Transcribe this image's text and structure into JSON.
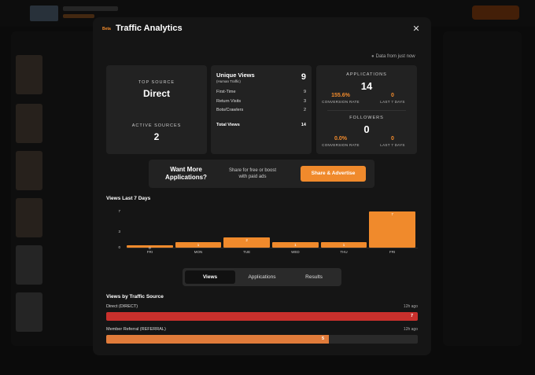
{
  "modal": {
    "beta": "Beta",
    "title": "Traffic Analytics",
    "close": "✕",
    "freshness": "Data from just now"
  },
  "top_source": {
    "label": "TOP SOURCE",
    "value": "Direct"
  },
  "active_sources": {
    "label": "ACTIVE SOURCES",
    "value": "2"
  },
  "unique_views": {
    "title": "Unique Views",
    "subtitle": "(Human Traffic)",
    "total": "9",
    "rows": [
      {
        "label": "First-Time",
        "value": "9"
      },
      {
        "label": "Return Visits",
        "value": "3"
      },
      {
        "label": "Bots/Crawlers",
        "value": "2"
      }
    ],
    "total_label": "Total Views",
    "total_value": "14"
  },
  "applications": {
    "label": "APPLICATIONS",
    "value": "14",
    "conversion_value": "155.6%",
    "conversion_label": "CONVERSION RATE",
    "last7_value": "0",
    "last7_label": "LAST 7 DAYS"
  },
  "followers": {
    "label": "FOLLOWERS",
    "value": "0",
    "conversion_value": "0.0%",
    "conversion_label": "CONVERSION RATE",
    "last7_value": "0",
    "last7_label": "LAST 7 DAYS"
  },
  "promo": {
    "heading": "Want More Applications?",
    "text": "Share for free or boost with paid ads",
    "button": "Share & Advertise"
  },
  "views_section_title": "Views Last 7 Days",
  "chart_data": {
    "type": "bar",
    "title": "Views Last 7 Days",
    "categories": [
      "FRI",
      "MON",
      "TUE",
      "WED",
      "THU",
      "FRI"
    ],
    "values": [
      0,
      1,
      2,
      1,
      1,
      7
    ],
    "yticks": [
      0,
      3,
      7
    ],
    "ylim": [
      0,
      7
    ],
    "color": "#f08a2c",
    "grid": false
  },
  "tabs": [
    {
      "label": "Views",
      "active": true
    },
    {
      "label": "Applications",
      "active": false
    },
    {
      "label": "Results",
      "active": false
    }
  ],
  "traffic_section_title": "Views by Traffic Source",
  "sources": [
    {
      "name": "Direct (DIRECT)",
      "time": "12h ago",
      "value": 7,
      "fraction": 1.0,
      "color": "#c9302c"
    },
    {
      "name": "Member Referral (REFERRAL)",
      "time": "12h ago",
      "value": 5,
      "fraction": 0.714,
      "color": "#e07b3a"
    }
  ],
  "colors": {
    "accent": "#f08a2c",
    "background": "#151515",
    "card": "#222222"
  }
}
